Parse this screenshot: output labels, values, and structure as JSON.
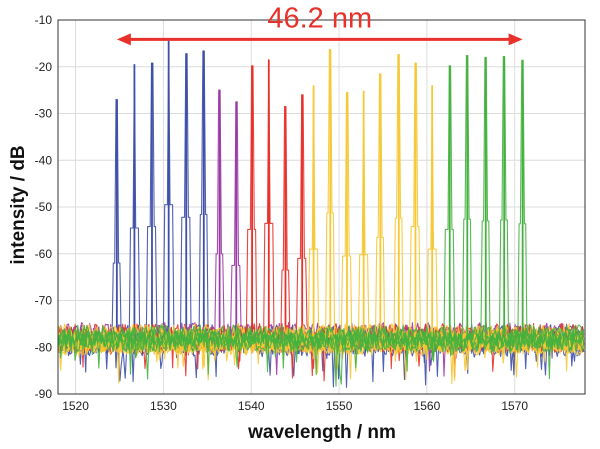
{
  "chart_data": {
    "type": "line",
    "title": "",
    "xlabel": "wavelength / nm",
    "ylabel": "intensity / dB",
    "xlim": [
      1518,
      1578
    ],
    "ylim": [
      -90,
      -10
    ],
    "xticks": [
      1520,
      1530,
      1540,
      1550,
      1560,
      1570
    ],
    "yticks": [
      -90,
      -80,
      -70,
      -60,
      -50,
      -40,
      -30,
      -20,
      -10
    ],
    "grid": true,
    "legend": "none",
    "annotation": {
      "text": "46.2 nm",
      "x_start": 1524.7,
      "x_end": 1570.9,
      "y": -18,
      "color": "#e8312a"
    },
    "noise_floor_db": -78,
    "series": [
      {
        "color": "#3e4fa8",
        "peaks": [
          [
            1524.7,
            -27
          ],
          [
            1526.7,
            -19.5
          ],
          [
            1528.7,
            -19.2
          ],
          [
            1530.6,
            -14.5
          ],
          [
            1532.6,
            -17.2
          ],
          [
            1534.6,
            -16.6
          ]
        ]
      },
      {
        "color": "#9b3aa6",
        "peaks": [
          [
            1536.4,
            -25
          ],
          [
            1538.3,
            -27.5
          ]
        ]
      },
      {
        "color": "#e8312a",
        "peaks": [
          [
            1540.1,
            -19.8
          ],
          [
            1542.0,
            -18.5
          ],
          [
            1543.9,
            -28.5
          ],
          [
            1545.8,
            -26
          ]
        ]
      },
      {
        "color": "#f6c833",
        "peaks": [
          [
            1547.1,
            -24
          ],
          [
            1549.0,
            -16.3
          ],
          [
            1550.9,
            -25.5
          ],
          [
            1552.8,
            -25.2
          ],
          [
            1554.7,
            -21.5
          ],
          [
            1556.8,
            -17.4
          ],
          [
            1558.7,
            -19.2
          ],
          [
            1560.6,
            -24
          ]
        ]
      },
      {
        "color": "#44b13f",
        "peaks": [
          [
            1562.6,
            -19.8
          ],
          [
            1564.6,
            -17.6
          ],
          [
            1566.7,
            -18
          ],
          [
            1568.8,
            -17.8
          ],
          [
            1570.9,
            -18.6
          ]
        ]
      }
    ]
  }
}
